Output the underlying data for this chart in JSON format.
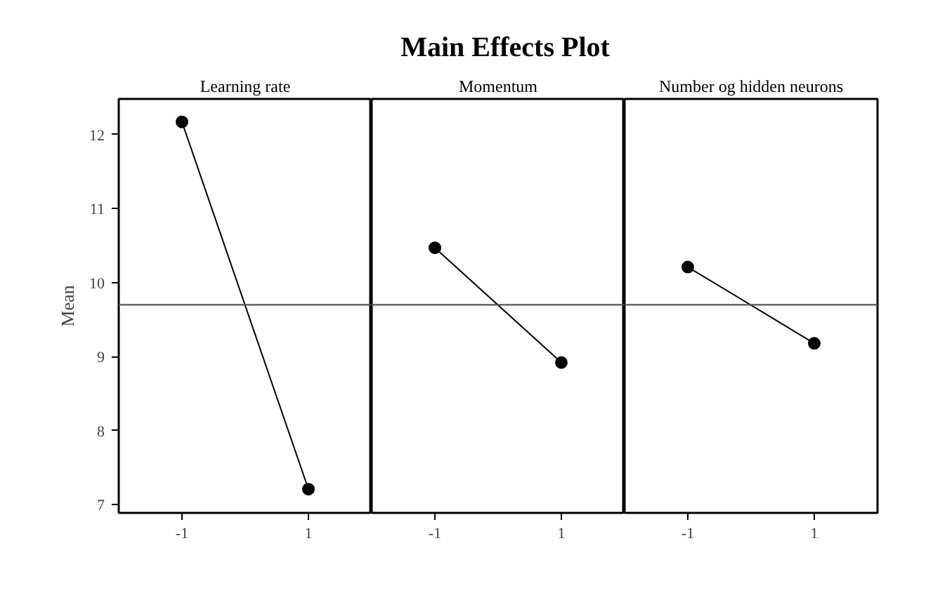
{
  "chart_data": [
    {
      "type": "line",
      "subtitle": "Learning rate",
      "ylabel": "Mean",
      "categories": [
        "-1",
        "1"
      ],
      "values": [
        12.17,
        7.21
      ],
      "color": "#000000",
      "marker": "circle",
      "ylim": [
        6.89,
        12.48
      ],
      "yticks": [
        7,
        8,
        9,
        10,
        11,
        12
      ],
      "ref_lines": [
        {
          "axis": "y",
          "value": 9.7,
          "color": "#555555"
        }
      ],
      "grid": false
    },
    {
      "type": "line",
      "title": "Main Effects Plot",
      "subtitle": "Momentum",
      "categories": [
        "-1",
        "1"
      ],
      "values": [
        10.47,
        8.92
      ],
      "color": "#000000",
      "marker": "circle",
      "ylim": [
        6.89,
        12.48
      ],
      "tick_labels": "x",
      "ref_lines": [
        {
          "axis": "y",
          "value": 9.7,
          "color": "#555555"
        }
      ],
      "grid": false
    },
    {
      "type": "line",
      "subtitle": "Number og hidden neurons",
      "categories": [
        "-1",
        "1"
      ],
      "values": [
        10.21,
        9.18
      ],
      "color": "#000000",
      "marker": "circle",
      "ylim": [
        6.89,
        12.48
      ],
      "tick_labels": "x",
      "ref_lines": [
        {
          "axis": "y",
          "value": 9.7,
          "color": "#555555"
        }
      ],
      "grid": false
    }
  ]
}
